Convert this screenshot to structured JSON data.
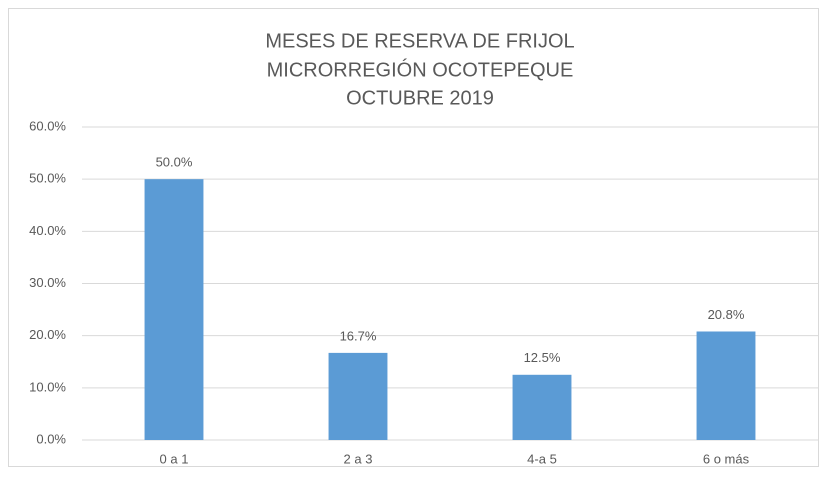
{
  "chart_data": {
    "type": "bar",
    "title": [
      "MESES DE RESERVA DE FRIJOL",
      "MICRORREGIÓN OCOTEPEQUE",
      "OCTUBRE 2019"
    ],
    "categories": [
      "0 a 1",
      "2 a 3",
      "4-a 5",
      "6 o más"
    ],
    "values": [
      50,
      16.7,
      12.5,
      20.8
    ],
    "value_labels": [
      "50.0%",
      "16.7%",
      "12.5%",
      "20.8%"
    ],
    "color": "#5b9bd5",
    "ylim": [
      0,
      60
    ],
    "yticks": [
      {
        "value": 0,
        "label": "0.0%"
      },
      {
        "value": 10,
        "label": "10.0%"
      },
      {
        "value": 20,
        "label": "20.0%"
      },
      {
        "value": 30,
        "label": "30.0%"
      },
      {
        "value": 40,
        "label": "40.0%"
      },
      {
        "value": 50,
        "label": "50.0%"
      },
      {
        "value": 60,
        "label": "60.0%"
      }
    ],
    "grid": true
  }
}
